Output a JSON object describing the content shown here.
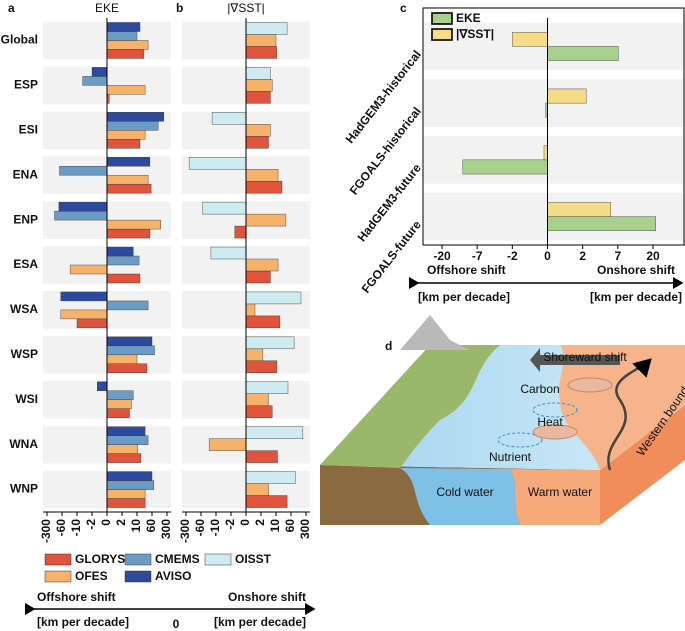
{
  "chart_data": [
    {
      "type": "bar",
      "orientation": "horizontal",
      "panel": "a",
      "title": "EKE",
      "scale": "symlog",
      "categories": [
        "Global",
        "ESP",
        "ESI",
        "ENA",
        "ENP",
        "ESA",
        "WSA",
        "WSP",
        "WSI",
        "WNA",
        "WNP"
      ],
      "series": [
        {
          "name": "GLORYS",
          "color": "#e0533c",
          "values": [
            33,
            0.3,
            20,
            57,
            53,
            20,
            -10,
            43,
            6,
            23,
            37
          ]
        },
        {
          "name": "OFES",
          "color": "#f6b26b",
          "values": [
            47,
            37,
            37,
            47,
            200,
            -33,
            -80,
            10,
            7,
            12,
            37
          ]
        },
        {
          "name": "CMEMS",
          "color": "#6c9cc6",
          "values": [
            10,
            -7,
            160,
            -100,
            -180,
            17,
            47,
            100,
            8,
            47,
            90
          ]
        },
        {
          "name": "AVISO",
          "color": "#2e4a9e",
          "values": [
            20,
            -2,
            250,
            53,
            -110,
            8,
            -80,
            60,
            -1.3,
            37,
            60
          ]
        }
      ],
      "xlim": [
        -300,
        300
      ],
      "xticks": [
        -300,
        -60,
        -10,
        -2,
        0,
        2,
        10,
        60,
        300
      ],
      "xlabel_left": "Offshore shift",
      "xlabel_right": "Onshore shift",
      "xunits": [
        "[km per decade]",
        "[km per decade]"
      ],
      "origin": 0
    },
    {
      "type": "bar",
      "orientation": "horizontal",
      "panel": "b",
      "title": "|∇SST|",
      "scale": "symlog",
      "series": [
        {
          "name": "GLORYS",
          "color": "#e0533c",
          "values": [
            12,
            7,
            6,
            30,
            -1.5,
            7,
            23,
            13,
            8,
            15,
            47
          ]
        },
        {
          "name": "OFES",
          "color": "#f6b26b",
          "values": [
            10,
            8,
            7,
            17,
            43,
            17,
            1.2,
            3,
            6,
            -33,
            6
          ]
        },
        {
          "name": "OISST",
          "color": "#cdebf0",
          "values": [
            47,
            7,
            -23,
            -250,
            -55,
            -27,
            220,
            110,
            50,
            250,
            130
          ]
        }
      ],
      "xlim": [
        -300,
        300
      ],
      "xticks": [
        -300,
        -60,
        -10,
        -2,
        0,
        2,
        10,
        60,
        300
      ]
    },
    {
      "type": "bar",
      "orientation": "horizontal",
      "panel": "c",
      "scale": "symlog",
      "categories": [
        "HadGEM3-historical",
        "FGOALS-historical",
        "HadGEM3-future",
        "FGOALS-future"
      ],
      "series": [
        {
          "name": "EKE",
          "color": "#a9d18e",
          "values": [
            7.2,
            -0.1,
            -12.3,
            21
          ]
        },
        {
          "name": "|∇SST|",
          "color": "#f6dc86",
          "values": [
            -2,
            2.5,
            -0.2,
            6
          ]
        }
      ],
      "xlim": [
        -20,
        20
      ],
      "xticks": [
        -20,
        -7,
        -2,
        0,
        2,
        7,
        20
      ],
      "xlabel_left": "Offshore shift",
      "xlabel_right": "Onshore shift",
      "xunits": [
        "[km per decade]",
        "[km per decade]"
      ]
    }
  ],
  "diagram": {
    "panel": "d",
    "labels": [
      "Shoreward shift",
      "Carbon",
      "Heat",
      "Nutrient",
      "Cold water",
      "Warm water",
      "Western boundary current"
    ]
  }
}
